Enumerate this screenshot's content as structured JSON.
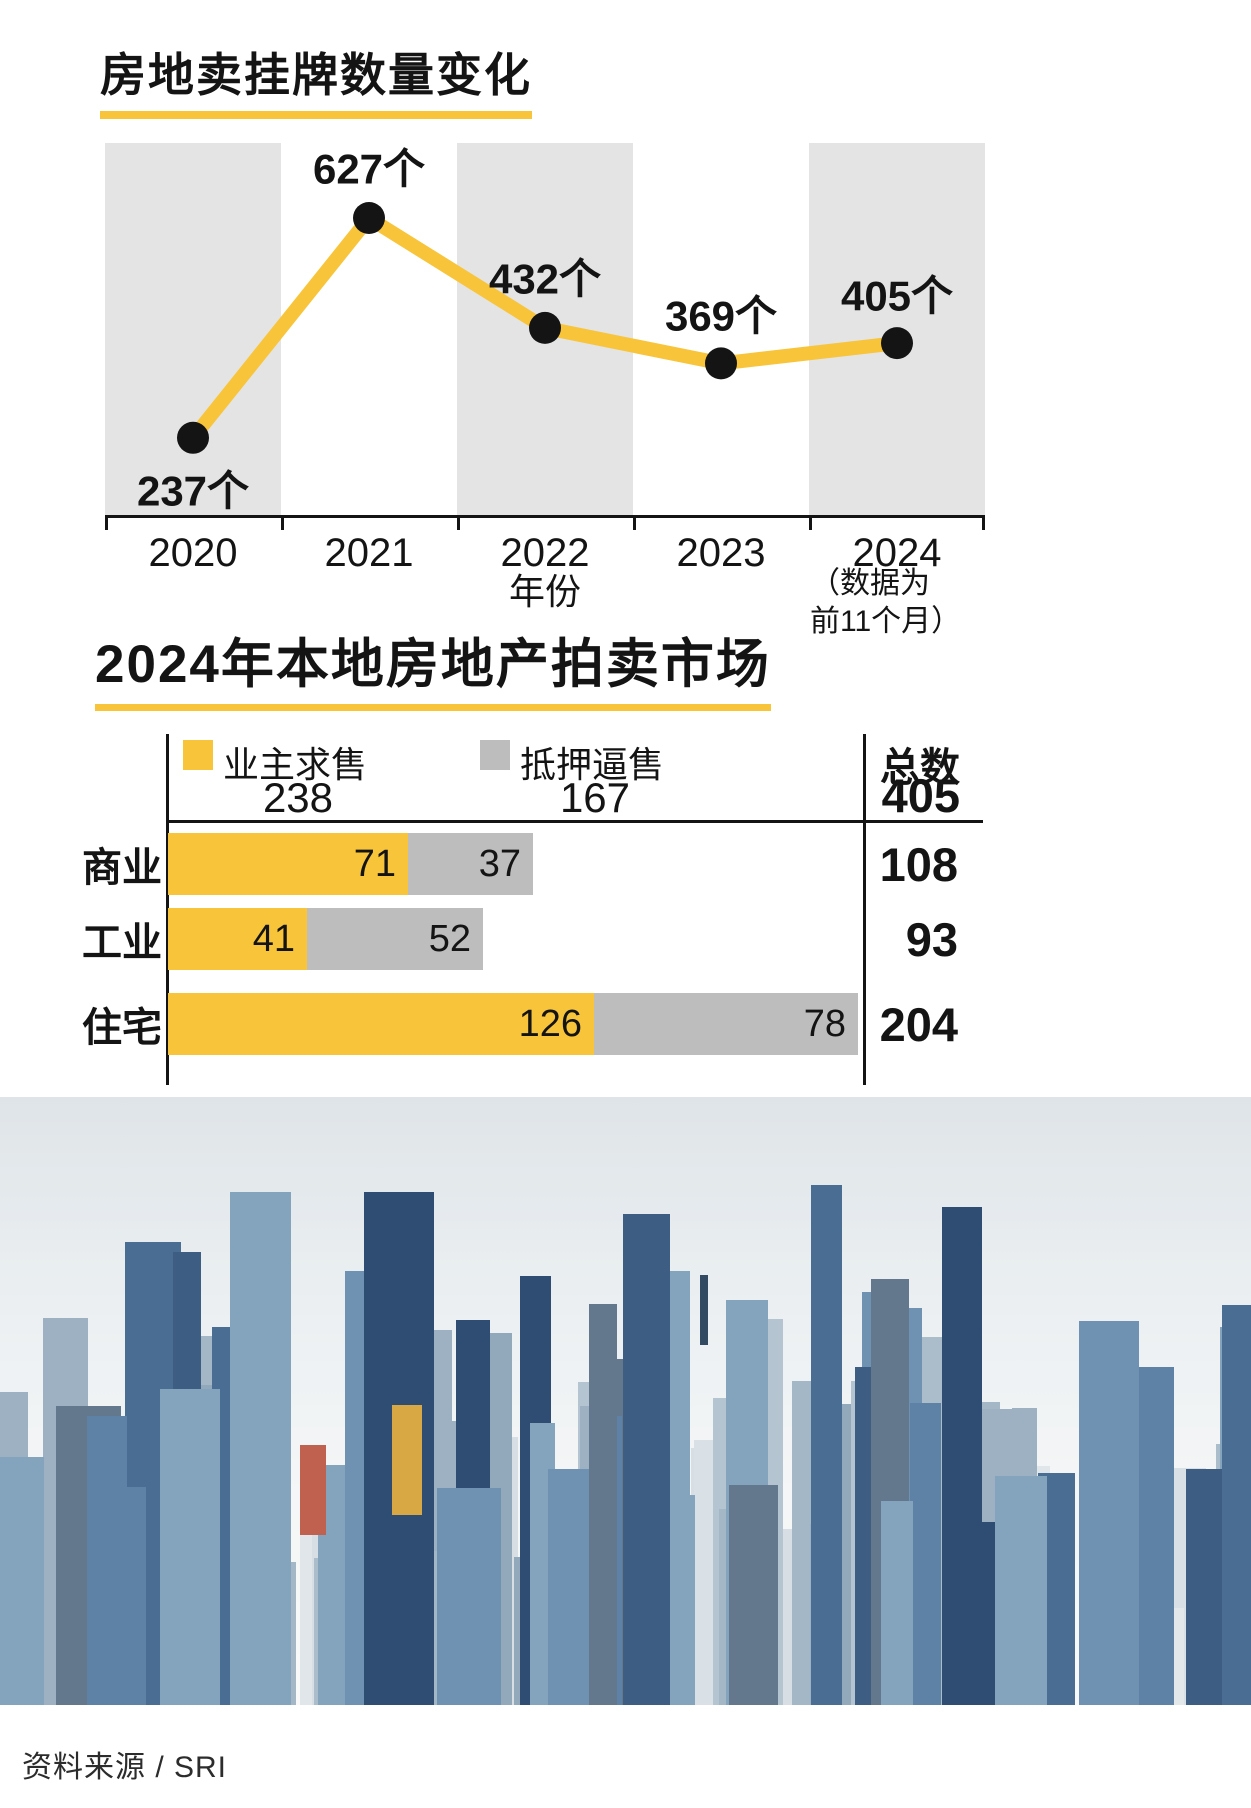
{
  "chart_data": [
    {
      "type": "line",
      "title": "房地卖挂牌数量变化",
      "x": [
        "2020",
        "2021",
        "2022",
        "2023",
        "2024"
      ],
      "values": [
        237,
        627,
        432,
        369,
        405
      ],
      "point_labels": [
        "237个",
        "627个",
        "432个",
        "369个",
        "405个"
      ],
      "xlabel": "年份",
      "note_lines": [
        "（数据为",
        "前11个月）"
      ],
      "ylim": [
        100,
        760
      ],
      "grid": false,
      "legend_position": "none",
      "line_color": "#F8C43A",
      "dot_color": "#141414",
      "band_color": "#E4E4E4"
    },
    {
      "type": "bar",
      "orientation": "horizontal",
      "stacked": true,
      "title": "2024年本地房地产拍卖市场",
      "categories": [
        "商业",
        "工业",
        "住宅"
      ],
      "series": [
        {
          "name": "业主求售",
          "color": "#F8C43A",
          "total": 238,
          "values": [
            71,
            41,
            126
          ]
        },
        {
          "name": "抵押逼售",
          "color": "#BDBDBD",
          "total": 167,
          "values": [
            37,
            52,
            78
          ]
        }
      ],
      "totals_label": "总数",
      "grand_total": 405,
      "row_totals": [
        108,
        93,
        204
      ],
      "xmax": 204
    }
  ],
  "footer": {
    "source": "资料来源 / SRI"
  }
}
